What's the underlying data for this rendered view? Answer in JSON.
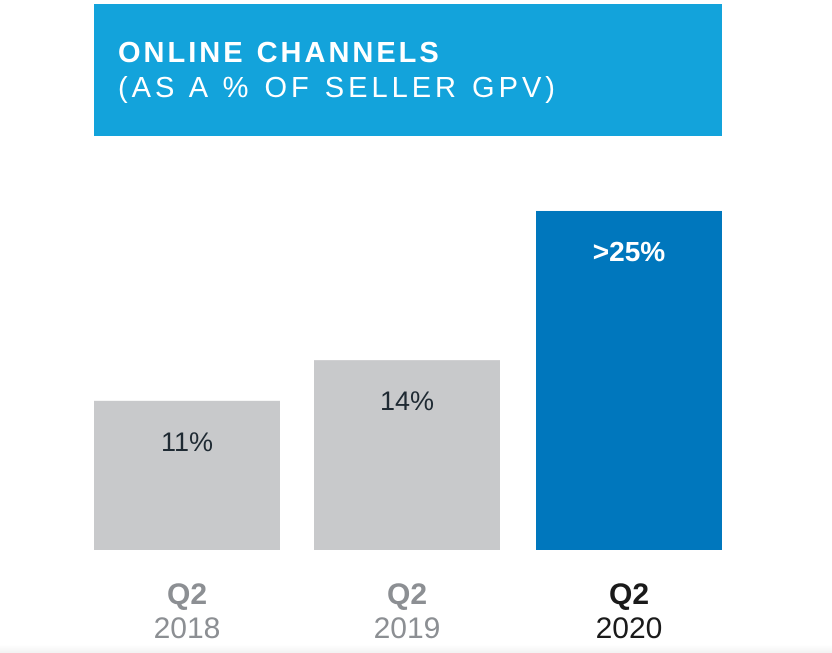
{
  "title_line1": "ONLINE CHANNELS",
  "title_line2": "(AS A % OF SELLER GPV)",
  "colors": {
    "banner": "#13A3DB",
    "bar_past": "#C8C9CB",
    "bar_current": "#0077BD",
    "label_dark": "#1F2A33",
    "label_white": "#FFFFFF",
    "axis_past": "#8C8F93",
    "axis_current": "#1A1A1A"
  },
  "chart_data": {
    "type": "bar",
    "categories": [
      {
        "quarter": "Q2",
        "year": "2018"
      },
      {
        "quarter": "Q2",
        "year": "2019"
      },
      {
        "quarter": "Q2",
        "year": "2020"
      }
    ],
    "values": [
      11,
      14,
      25
    ],
    "value_labels": [
      "11%",
      "14%",
      ">25%"
    ],
    "highlight_index": 2,
    "ylim": [
      0,
      27.8
    ],
    "grid": false,
    "legend": "none"
  }
}
